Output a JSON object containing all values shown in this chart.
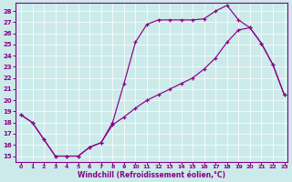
{
  "xlabel": "Windchill (Refroidissement éolien,°C)",
  "bg_color": "#cceaea",
  "line_color": "#880088",
  "xlim_min": -0.5,
  "xlim_max": 23.3,
  "ylim_min": 14.5,
  "ylim_max": 28.7,
  "xticks": [
    0,
    1,
    2,
    3,
    4,
    5,
    6,
    7,
    8,
    9,
    10,
    11,
    12,
    13,
    14,
    15,
    16,
    17,
    18,
    19,
    20,
    21,
    22,
    23
  ],
  "yticks": [
    15,
    16,
    17,
    18,
    19,
    20,
    21,
    22,
    23,
    24,
    25,
    26,
    27,
    28
  ],
  "curve_upper_x": [
    0,
    1,
    2,
    3,
    4,
    5,
    6,
    7,
    8,
    9,
    10,
    11,
    12,
    13,
    14,
    15,
    16,
    17,
    18,
    19,
    20,
    21,
    22,
    23
  ],
  "curve_upper_y": [
    18.7,
    18.0,
    16.5,
    15.0,
    15.0,
    15.0,
    15.8,
    16.2,
    18.0,
    21.5,
    25.2,
    26.8,
    27.2,
    27.2,
    27.2,
    27.2,
    27.3,
    28.0,
    28.5,
    27.2,
    26.5,
    25.1,
    23.2,
    20.5
  ],
  "curve_lower_x": [
    0,
    1,
    2,
    3,
    4,
    5,
    6,
    7,
    8,
    9,
    10,
    11,
    12,
    13,
    14,
    15,
    16,
    17,
    18,
    19,
    20,
    21,
    22,
    23
  ],
  "curve_lower_y": [
    18.7,
    18.0,
    16.5,
    15.0,
    15.0,
    15.0,
    15.8,
    16.2,
    17.8,
    18.5,
    19.3,
    20.0,
    20.5,
    21.0,
    21.5,
    22.0,
    22.8,
    23.8,
    25.2,
    26.3,
    26.5,
    25.1,
    23.2,
    20.5
  ]
}
